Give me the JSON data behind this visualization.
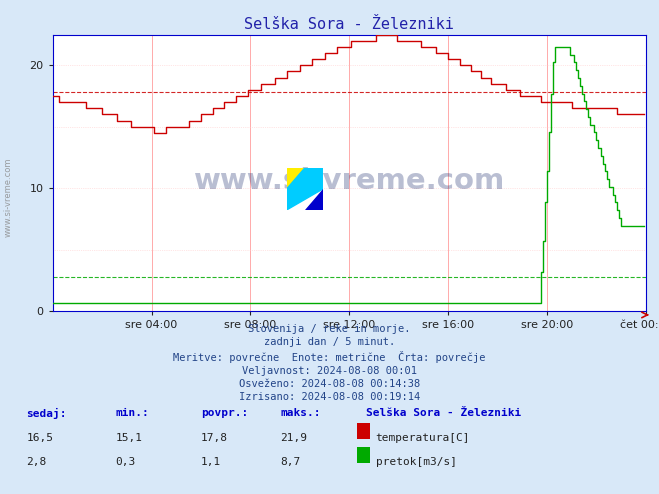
{
  "title": "Selška Sora - Železniki",
  "title_color": "#2222aa",
  "bg_color": "#d8e8f8",
  "plot_bg_color": "#ffffff",
  "x_min": 0,
  "x_max": 288,
  "y_temp_min": 0,
  "y_temp_max": 22,
  "y_flow_min": 0,
  "y_flow_max": 8.7,
  "temp_color": "#cc0000",
  "flow_color": "#00aa00",
  "avg_temp": 17.8,
  "avg_flow": 1.1,
  "x_tick_labels": [
    "sre 04:00",
    "sre 08:00",
    "sre 12:00",
    "sre 16:00",
    "sre 20:00",
    "čet 00:00"
  ],
  "x_tick_positions": [
    48,
    96,
    144,
    192,
    240,
    288
  ],
  "y_ticks": [
    0,
    10,
    20
  ],
  "watermark": "www.si-vreme.com",
  "info_lines": [
    "Slovenija / reke in morje.",
    "zadnji dan / 5 minut.",
    "Meritve: povrečne  Enote: metrične  Črta: povrečje",
    "Veljavnost: 2024-08-08 00:01",
    "Osveženo: 2024-08-08 00:14:38",
    "Izrisano: 2024-08-08 00:19:14"
  ],
  "table_headers": [
    "sedaj:",
    "min.:",
    "povpr.:",
    "maks.:"
  ],
  "table_label": "Selška Sora - Železniki",
  "table_temp": [
    "16,5",
    "15,1",
    "17,8",
    "21,9"
  ],
  "table_flow": [
    "2,8",
    "0,3",
    "1,1",
    "8,7"
  ],
  "label_temp": "temperatura[C]",
  "label_flow": "pretok[m3/s]"
}
